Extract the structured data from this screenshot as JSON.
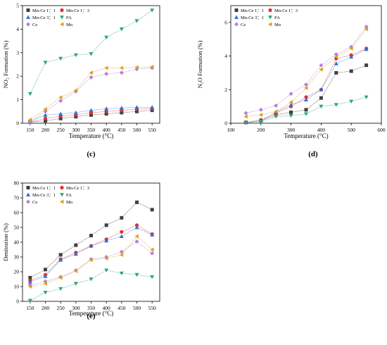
{
  "chart_data": [
    {
      "panel_label": "(c)",
      "type": "line",
      "xlabel": "Temperature (°C)",
      "ylabel": "NO₂ Formation (%)",
      "x": [
        150,
        200,
        250,
        300,
        350,
        400,
        450,
        500,
        550
      ],
      "xlim": [
        125,
        575
      ],
      "ylim": [
        0,
        5
      ],
      "xticks": [
        150,
        200,
        250,
        300,
        350,
        400,
        450,
        500,
        550
      ],
      "yticks": [
        0,
        1,
        2,
        3,
        4,
        5
      ],
      "legend": {
        "placement": "top-left",
        "columns": 2
      },
      "series": [
        {
          "name": "Mn-Ce 1：1",
          "marker": "square",
          "color": "#404040",
          "values": [
            0.05,
            0.1,
            0.2,
            0.28,
            0.35,
            0.4,
            0.45,
            0.5,
            0.55
          ]
        },
        {
          "name": "Mn-Ce 1：3",
          "marker": "circle",
          "color": "#e03030",
          "values": [
            0.05,
            0.2,
            0.3,
            0.35,
            0.45,
            0.5,
            0.55,
            0.6,
            0.62
          ]
        },
        {
          "name": "Mn-Ce 3：1",
          "marker": "triangle-up",
          "color": "#2f6fd6",
          "values": [
            0.08,
            0.35,
            0.4,
            0.45,
            0.55,
            0.62,
            0.65,
            0.68,
            0.68
          ]
        },
        {
          "name": "FA",
          "marker": "triangle-down",
          "color": "#2fa86e",
          "values": [
            1.25,
            2.58,
            2.75,
            2.9,
            2.95,
            3.65,
            4.0,
            4.35,
            4.8
          ]
        },
        {
          "name": "Ce",
          "marker": "diamond",
          "color": "#b57ee0",
          "values": [
            0.05,
            0.5,
            0.95,
            1.35,
            1.95,
            2.1,
            2.15,
            2.3,
            2.35
          ]
        },
        {
          "name": "Mn",
          "marker": "triangle-left",
          "color": "#d9a21b",
          "values": [
            0.15,
            0.6,
            1.1,
            1.4,
            2.15,
            2.35,
            2.35,
            2.38,
            2.4
          ]
        }
      ]
    },
    {
      "panel_label": "(d)",
      "type": "line",
      "xlabel": "Temperature (°C)",
      "ylabel": "N₂O Formation (%)",
      "x": [
        150,
        200,
        250,
        300,
        350,
        400,
        450,
        500,
        550
      ],
      "xlim": [
        100,
        600
      ],
      "ylim": [
        0,
        7
      ],
      "xticks": [
        100,
        200,
        300,
        400,
        500,
        600
      ],
      "yticks": [
        0,
        2,
        4,
        6
      ],
      "legend": {
        "placement": "top-left",
        "columns": 2
      },
      "series": [
        {
          "name": "Mn-Ce 1：1",
          "marker": "square",
          "color": "#404040",
          "values": [
            0.05,
            0.15,
            0.5,
            0.65,
            0.8,
            1.5,
            3.0,
            3.1,
            3.45
          ]
        },
        {
          "name": "Mn-Ce 1：3",
          "marker": "circle",
          "color": "#e03030",
          "values": [
            0.05,
            0.2,
            0.6,
            1.0,
            1.55,
            2.0,
            3.85,
            4.05,
            4.45
          ]
        },
        {
          "name": "Mn-Ce 3：1",
          "marker": "triangle-up",
          "color": "#2f6fd6",
          "values": [
            0.05,
            0.15,
            0.65,
            1.1,
            1.4,
            2.0,
            3.55,
            3.95,
            4.4
          ]
        },
        {
          "name": "FA",
          "marker": "triangle-down",
          "color": "#2fa86e",
          "values": [
            0.02,
            0.1,
            0.4,
            0.45,
            0.55,
            1.0,
            1.1,
            1.3,
            1.55
          ]
        },
        {
          "name": "Ce",
          "marker": "diamond",
          "color": "#b57ee0",
          "values": [
            0.6,
            0.8,
            1.05,
            1.75,
            2.3,
            3.45,
            4.1,
            4.55,
            5.75
          ]
        },
        {
          "name": "Mn",
          "marker": "triangle-left",
          "color": "#d9a21b",
          "values": [
            0.4,
            0.5,
            0.7,
            1.25,
            2.1,
            3.2,
            3.95,
            4.45,
            5.6
          ]
        }
      ]
    },
    {
      "panel_label": "(e)",
      "type": "line",
      "xlabel": "Temperature (°C)",
      "ylabel": "Denitration (%)",
      "x": [
        150,
        200,
        250,
        300,
        350,
        400,
        450,
        500,
        550
      ],
      "xlim": [
        125,
        575
      ],
      "ylim": [
        0,
        80
      ],
      "xticks": [
        150,
        200,
        250,
        300,
        350,
        400,
        450,
        500,
        550
      ],
      "yticks": [
        0,
        10,
        20,
        30,
        40,
        50,
        60,
        70,
        80
      ],
      "legend": {
        "placement": "top-left",
        "columns": 2
      },
      "series": [
        {
          "name": "Mn-Ce 1：1",
          "marker": "square",
          "color": "#404040",
          "values": [
            16,
            21.5,
            31.5,
            38,
            44.5,
            51.5,
            56.5,
            67,
            62
          ]
        },
        {
          "name": "Mn-Ce 1：3",
          "marker": "circle",
          "color": "#e03030",
          "values": [
            14,
            18,
            28.5,
            33,
            37.5,
            42,
            47,
            51.5,
            45.5
          ]
        },
        {
          "name": "Mn-Ce 3：1",
          "marker": "triangle-up",
          "color": "#2f6fd6",
          "values": [
            13,
            17,
            28,
            32,
            37.5,
            41,
            44,
            50,
            45
          ]
        },
        {
          "name": "FA",
          "marker": "triangle-down",
          "color": "#2fa86e",
          "values": [
            0.5,
            6,
            8.5,
            12,
            15,
            21,
            19,
            18,
            16.5
          ]
        },
        {
          "name": "Ce",
          "marker": "diamond",
          "color": "#b57ee0",
          "values": [
            11,
            13.5,
            16.5,
            21,
            28.5,
            30,
            33.5,
            40.5,
            32.5
          ]
        },
        {
          "name": "Mn",
          "marker": "triangle-left",
          "color": "#d9a21b",
          "values": [
            10,
            12,
            16,
            20.5,
            28,
            29,
            31.5,
            44,
            35
          ]
        }
      ]
    }
  ]
}
